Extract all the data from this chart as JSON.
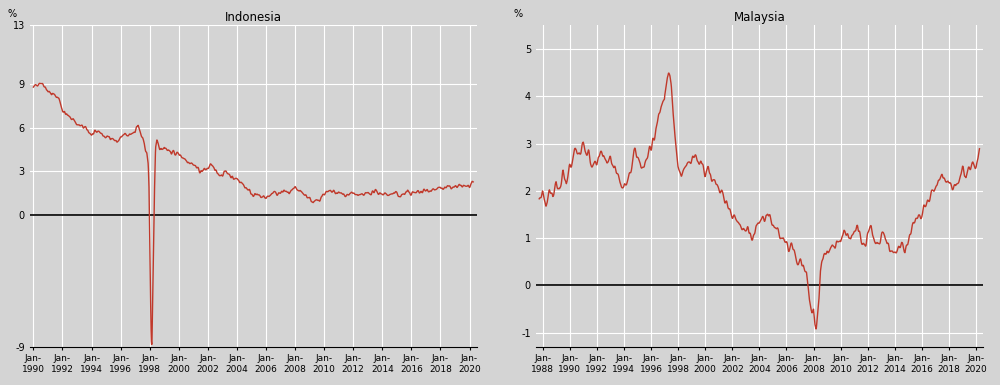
{
  "indonesia": {
    "title": "Indonesia",
    "ylabel": "%",
    "ylim": [
      -9,
      13
    ],
    "yticks": [
      -9,
      0,
      3,
      6,
      9,
      13
    ],
    "ytick_labels": [
      "-9",
      "0",
      "3",
      "6",
      "9",
      "13"
    ],
    "xstart": 1989.75,
    "xend": 2020.5,
    "xtick_years": [
      1990,
      1992,
      1994,
      1996,
      1998,
      2000,
      2002,
      2004,
      2006,
      2008,
      2010,
      2012,
      2014,
      2016,
      2018,
      2020
    ],
    "zero_line": 0
  },
  "malaysia": {
    "title": "Malaysia",
    "ylabel": "%",
    "ylim": [
      -1.3,
      5.5
    ],
    "yticks": [
      -1,
      0,
      1,
      2,
      3,
      4,
      5
    ],
    "ytick_labels": [
      "-1",
      "0",
      "1",
      "2",
      "3",
      "4",
      "5"
    ],
    "xstart": 1987.5,
    "xend": 2020.5,
    "xtick_years": [
      1988,
      1990,
      1992,
      1994,
      1996,
      1998,
      2000,
      2002,
      2004,
      2006,
      2008,
      2010,
      2012,
      2014,
      2016,
      2018,
      2020
    ],
    "zero_line": 0
  },
  "line_color": "#C0392B",
  "line_width": 1.0,
  "bg_color": "#D4D4D4",
  "fig_bg": "#D4D4D4",
  "grid_color": "#FFFFFF",
  "zero_line_color": "#000000",
  "title_fontsize": 8.5,
  "tick_fontsize": 7,
  "ylabel_fontsize": 7
}
